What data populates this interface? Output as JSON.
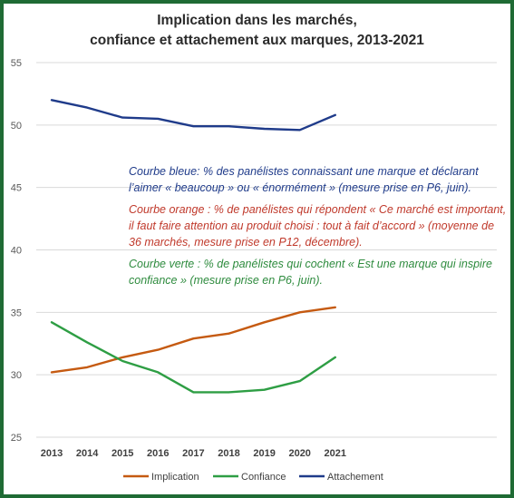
{
  "title_line1": "Implication dans les marchés,",
  "title_line2": "confiance et attachement aux marques, 2013-2021",
  "notes": {
    "blue": "Courbe bleue: % des panélistes connaissant une marque et déclarant l’aimer « beaucoup » ou « énormément » (mesure prise en P6, juin).",
    "orange": "Courbe orange : % de panélistes qui répondent « Ce marché est important, il faut faire attention au produit choisi : tout à fait d’accord » (moyenne de 36 marchés, mesure prise en P12, décembre).",
    "green": "Courbe verte : % de panélistes qui cochent « Est une marque qui inspire confiance » (mesure prise en P6, juin)."
  },
  "colors": {
    "implication": "#c55a11",
    "confiance": "#2e9e44",
    "attachement": "#1f3b8a",
    "frame": "#1f6b34",
    "grid": "#d9d9d9"
  },
  "chart_data": {
    "type": "line",
    "x": [
      2013,
      2014,
      2015,
      2016,
      2017,
      2018,
      2019,
      2020,
      2021
    ],
    "series": [
      {
        "name": "Implication",
        "values": [
          30.2,
          30.6,
          31.4,
          32.0,
          32.9,
          33.3,
          34.2,
          35.0,
          35.4
        ]
      },
      {
        "name": "Confiance",
        "values": [
          34.2,
          32.6,
          31.1,
          30.2,
          28.6,
          28.6,
          28.8,
          29.5,
          31.4
        ]
      },
      {
        "name": "Attachement",
        "values": [
          52.0,
          51.4,
          50.6,
          50.5,
          49.9,
          49.9,
          49.7,
          49.6,
          50.8
        ]
      }
    ],
    "ylim": [
      25,
      55
    ],
    "yticks": [
      25,
      30,
      35,
      40,
      45,
      50,
      55
    ],
    "grid": true,
    "legend": "bottom"
  }
}
